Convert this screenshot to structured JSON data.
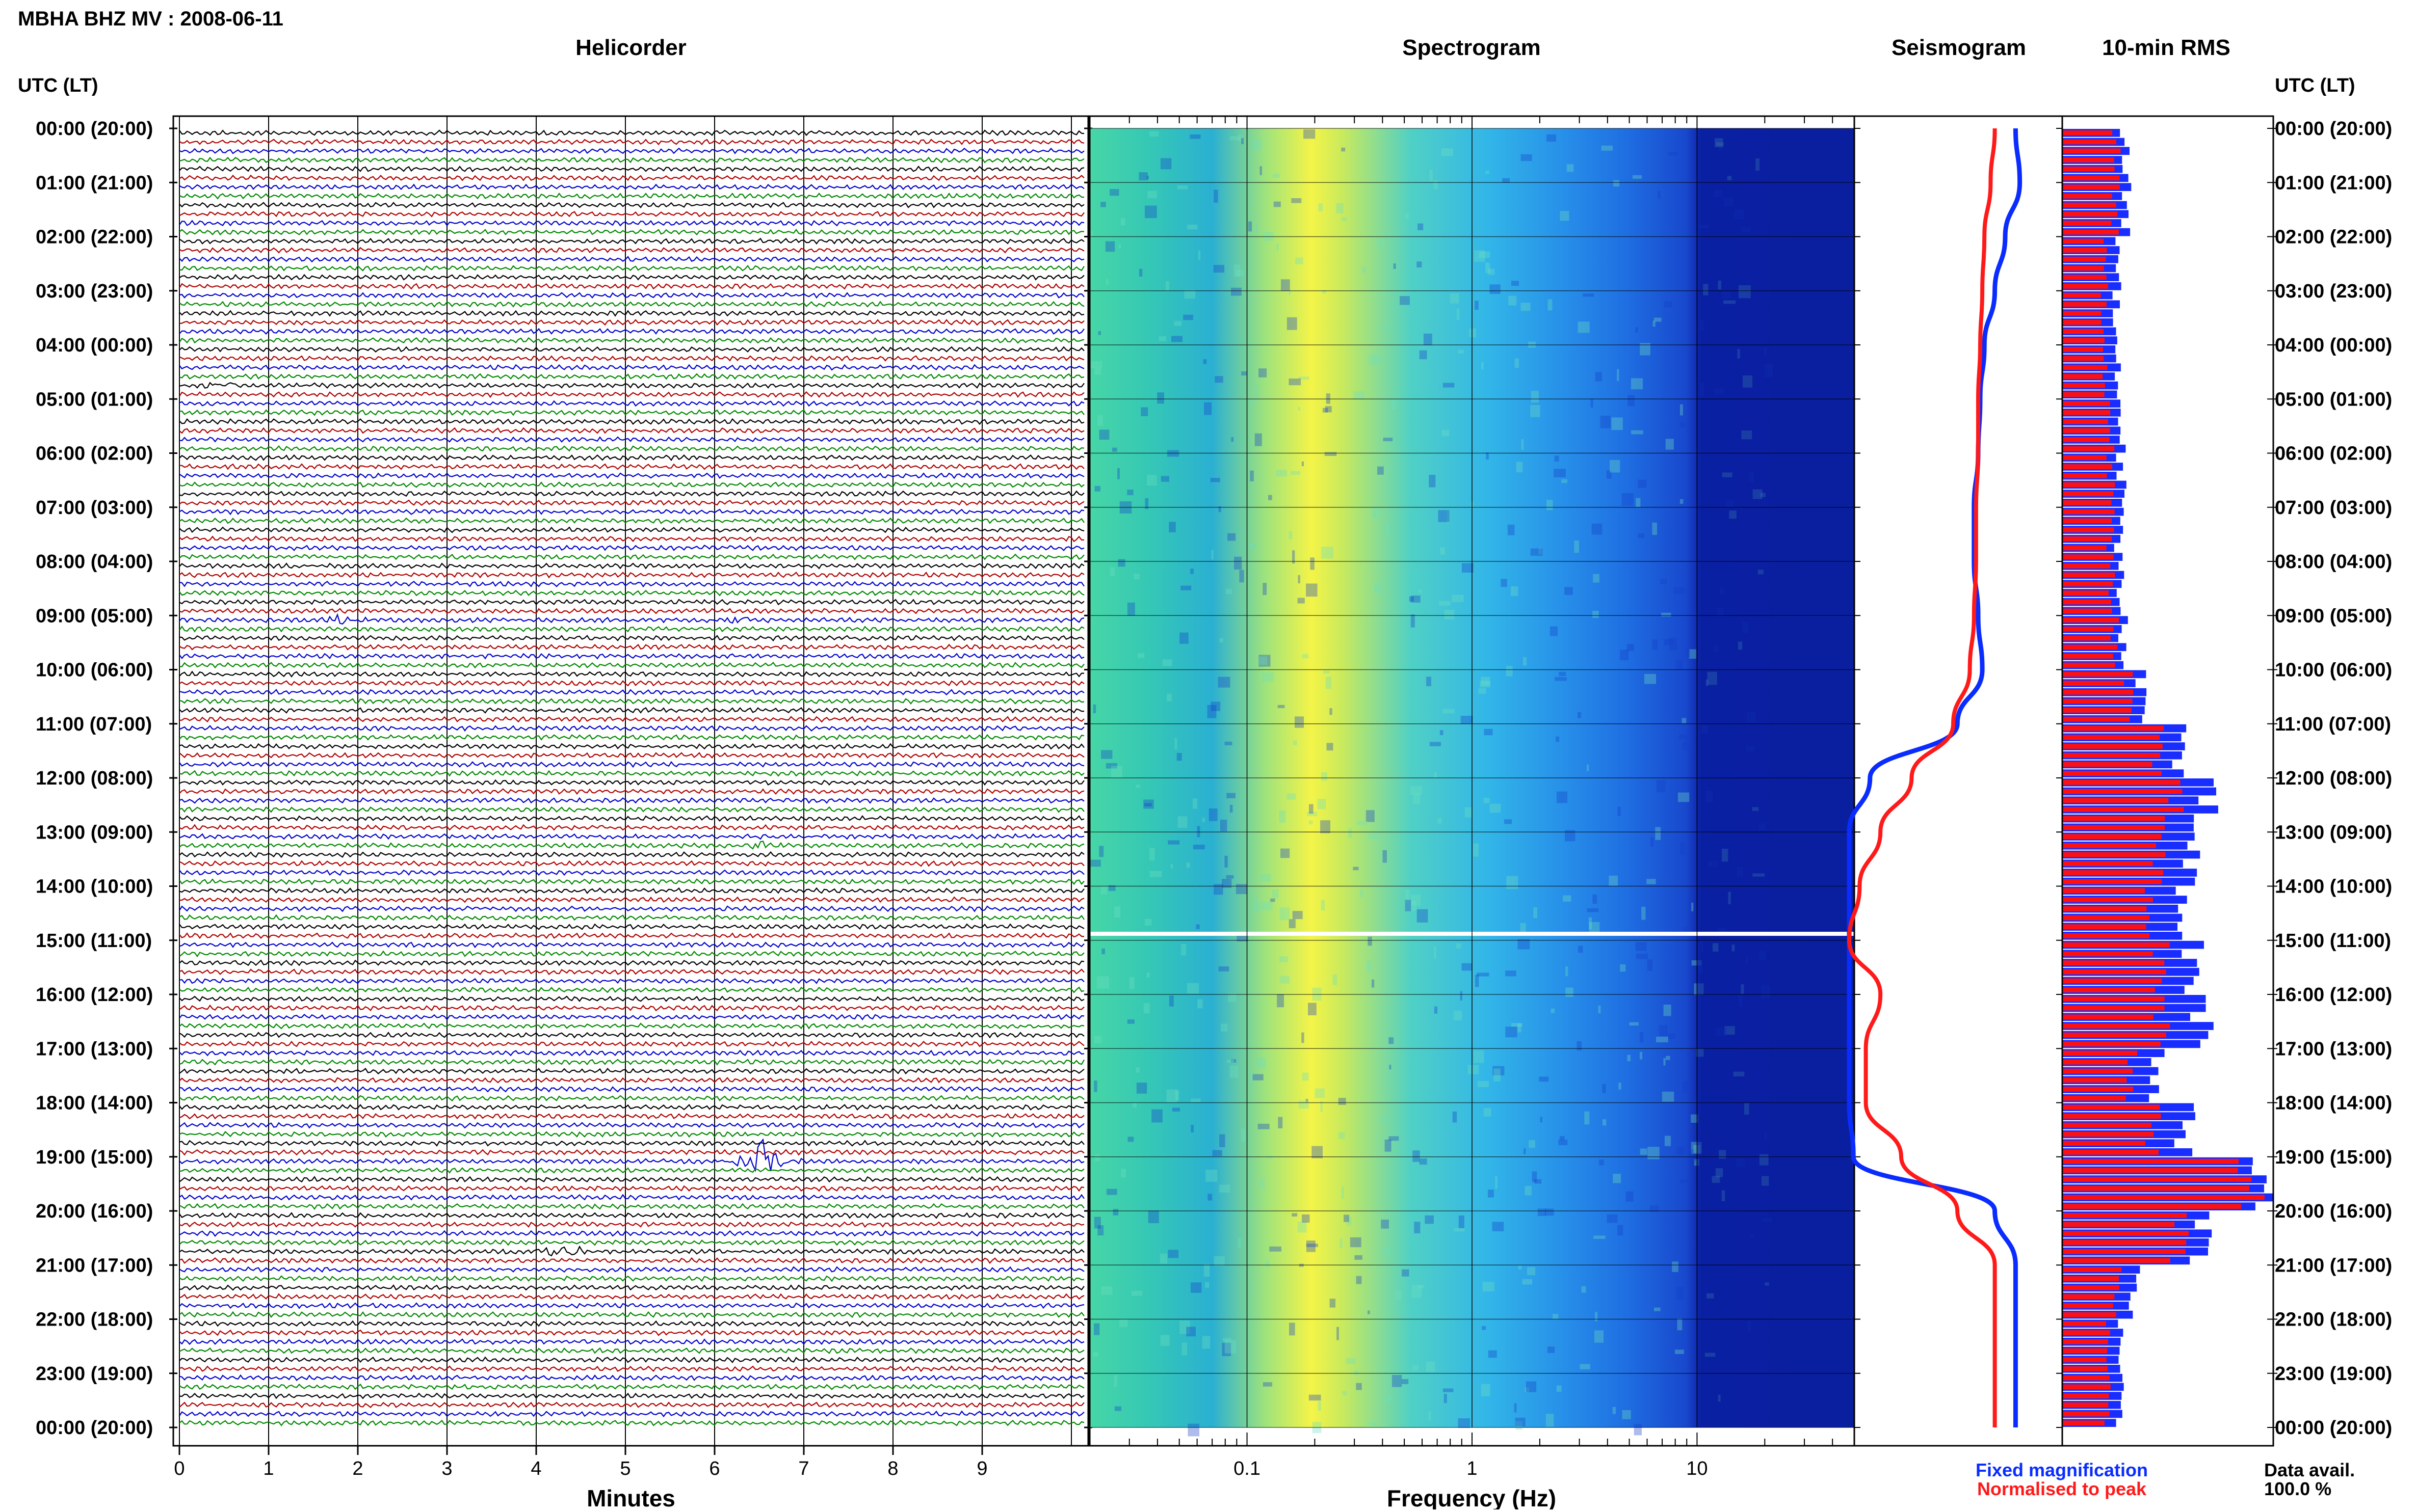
{
  "header": {
    "title": "MBHA BHZ MV : 2008-06-11"
  },
  "panels": {
    "helicorder": "Helicorder",
    "spectrogram": "Spectrogram",
    "seismogram": "Seismogram",
    "rms": "10-min RMS"
  },
  "axis": {
    "time_header_left": "UTC (LT)",
    "time_header_right": "UTC (LT)",
    "time_labels": [
      "00:00 (20:00)",
      "01:00 (21:00)",
      "02:00 (22:00)",
      "03:00 (23:00)",
      "04:00 (00:00)",
      "05:00 (01:00)",
      "06:00 (02:00)",
      "07:00 (03:00)",
      "08:00 (04:00)",
      "09:00 (05:00)",
      "10:00 (06:00)",
      "11:00 (07:00)",
      "12:00 (08:00)",
      "13:00 (09:00)",
      "14:00 (10:00)",
      "15:00 (11:00)",
      "16:00 (12:00)",
      "17:00 (13:00)",
      "18:00 (14:00)",
      "19:00 (15:00)",
      "20:00 (16:00)",
      "21:00 (17:00)",
      "22:00 (18:00)",
      "23:00 (19:00)",
      "00:00 (20:00)"
    ],
    "minutes_label": "Minutes",
    "minutes_ticks": [
      "0",
      "1",
      "2",
      "3",
      "4",
      "5",
      "6",
      "7",
      "8",
      "9"
    ],
    "frequency_label": "Frequency (Hz)",
    "frequency_ticks": [
      "0.1",
      "1",
      "10"
    ]
  },
  "legend": {
    "fixed": "Fixed magnification",
    "normalised": "Normalised to peak",
    "fixed_color": "#0a2cff",
    "normalised_color": "#ff1a1a"
  },
  "data_avail": {
    "label": "Data avail.",
    "value": "100.0 %"
  },
  "colors": {
    "trace_cycle": [
      "#000000",
      "#b00000",
      "#0000cc",
      "#008800"
    ],
    "rms_fixed": "#1a2dff",
    "rms_normalised": "#ff1010",
    "spectrogram_low": "#0a1f9e",
    "spectrogram_high": "#ffff3c"
  },
  "chart_data": [
    {
      "type": "line",
      "panel": "helicorder",
      "x_unit": "Minutes",
      "xlim": [
        0,
        10
      ],
      "rows": 144,
      "row_minutes": 10,
      "events": [
        {
          "row": 114,
          "minute": 6.5,
          "amplitude": "large"
        },
        {
          "row": 124,
          "minute": 4.3,
          "amplitude": "medium"
        },
        {
          "row": 54,
          "minute": 1.8,
          "amplitude": "small"
        },
        {
          "row": 54,
          "minute": 6.3,
          "amplitude": "small"
        },
        {
          "row": 28,
          "minute": 0.5,
          "amplitude": "small"
        },
        {
          "row": 79,
          "minute": 6.5,
          "amplitude": "small"
        }
      ]
    },
    {
      "type": "heatmap",
      "panel": "spectrogram",
      "x_unit": "Frequency (Hz)",
      "x_scale": "log",
      "xlim": [
        0.02,
        50
      ],
      "peak_band_hz": [
        0.2,
        0.35
      ],
      "gap_hour_utc": 15.0
    },
    {
      "type": "line",
      "panel": "seismogram",
      "hours_utc": [
        0,
        1,
        2,
        3,
        4,
        5,
        6,
        7,
        8,
        9,
        10,
        11,
        12,
        13,
        14,
        15,
        16,
        17,
        18,
        19,
        20,
        21,
        22,
        23,
        24
      ],
      "series": [
        {
          "name": "Fixed magnification",
          "values": [
            0.2,
            0.18,
            0.25,
            0.3,
            0.35,
            0.37,
            0.38,
            0.4,
            0.4,
            0.38,
            0.36,
            0.48,
            0.9,
            1.0,
            1.0,
            1.0,
            1.0,
            1.0,
            1.0,
            0.98,
            0.3,
            0.2,
            0.2,
            0.2,
            0.2
          ]
        },
        {
          "name": "Normalised to peak",
          "values": [
            0.3,
            0.32,
            0.35,
            0.36,
            0.37,
            0.38,
            0.38,
            0.39,
            0.39,
            0.4,
            0.42,
            0.5,
            0.7,
            0.85,
            0.95,
            1.0,
            0.85,
            0.92,
            0.92,
            0.75,
            0.48,
            0.3,
            0.3,
            0.3,
            0.3
          ]
        }
      ]
    },
    {
      "type": "bar",
      "panel": "rms",
      "bins_per_hour": 6,
      "xlim": [
        0,
        1
      ],
      "hourly_fixed": [
        0.3,
        0.3,
        0.27,
        0.26,
        0.26,
        0.28,
        0.28,
        0.27,
        0.27,
        0.29,
        0.38,
        0.55,
        0.68,
        0.6,
        0.55,
        0.62,
        0.66,
        0.45,
        0.58,
        0.95,
        0.65,
        0.34,
        0.28,
        0.28
      ],
      "hourly_normalised": [
        0.26,
        0.25,
        0.21,
        0.2,
        0.2,
        0.23,
        0.23,
        0.23,
        0.23,
        0.25,
        0.32,
        0.45,
        0.53,
        0.45,
        0.4,
        0.47,
        0.47,
        0.33,
        0.43,
        0.88,
        0.55,
        0.26,
        0.22,
        0.22
      ]
    }
  ]
}
